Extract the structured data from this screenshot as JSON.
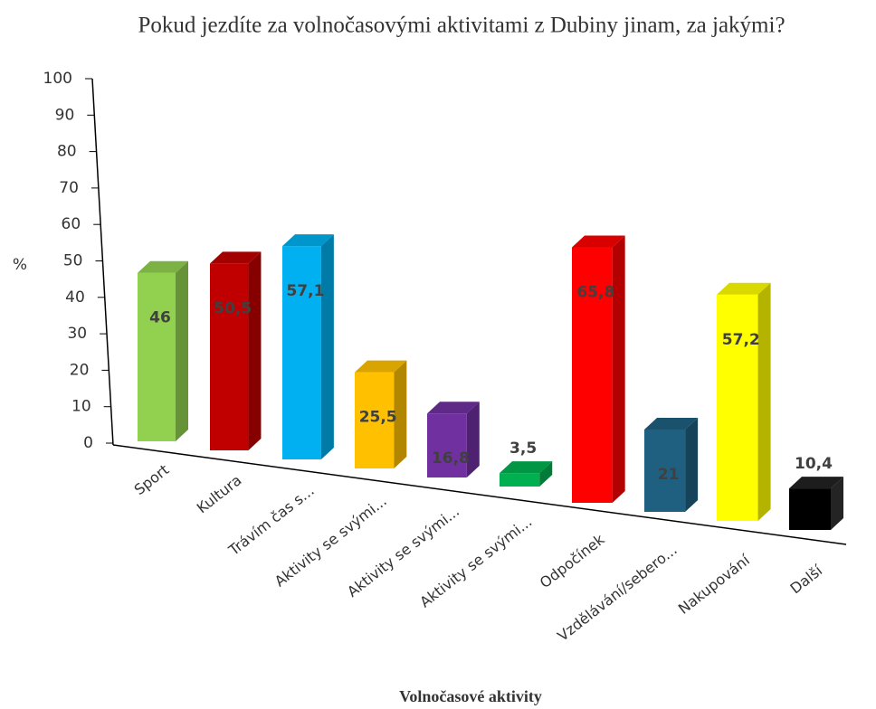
{
  "chart_data": {
    "type": "bar3d",
    "title": "Pokud jezdíte za volnočasovými aktivitami z Dubiny jinam, za jakými?",
    "y_label": "%",
    "x_label": "Volnočasové aktivity",
    "categories": [
      "Sport",
      "Kultura",
      "Trávím čas s...",
      "Aktivity se svými...",
      "Aktivity se svými...",
      "Aktivity se svými...",
      "Odpočínek",
      "Vzdělávání/sebero...",
      "Nakupování",
      "Další"
    ],
    "values": [
      46,
      50.5,
      57.1,
      25.5,
      16.8,
      3.5,
      65.8,
      21,
      57.2,
      10.4
    ],
    "value_labels": [
      "46",
      "50,5",
      "57,1",
      "25,5",
      "16,8",
      "3,5",
      "65,8",
      "21",
      "57,2",
      "10,4"
    ],
    "colors": [
      "#92d050",
      "#c00000",
      "#00b0f0",
      "#ffc000",
      "#7030a0",
      "#00b050",
      "#ff0000",
      "#1f5f80",
      "#ffff00",
      "#000000"
    ],
    "ylim": [
      0,
      100
    ],
    "yticks": [
      0,
      10,
      20,
      30,
      40,
      50,
      60,
      70,
      80,
      90,
      100
    ],
    "grid": false
  }
}
